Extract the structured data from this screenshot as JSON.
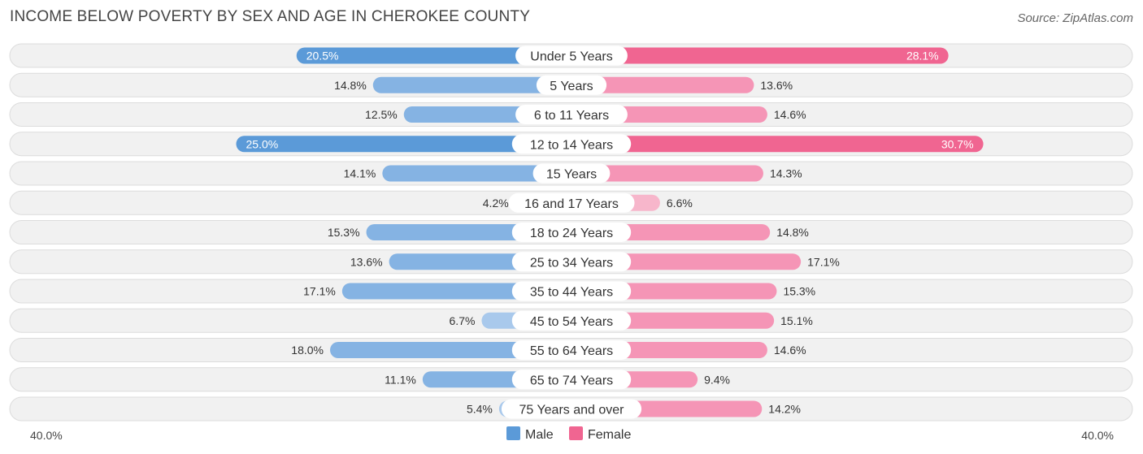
{
  "header": {
    "title": "INCOME BELOW POVERTY BY SEX AND AGE IN CHEROKEE COUNTY",
    "source": "Source: ZipAtlas.com"
  },
  "chart_data": {
    "type": "bar",
    "orientation": "horizontal-diverging",
    "title": "INCOME BELOW POVERTY BY SEX AND AGE IN CHEROKEE COUNTY",
    "categories": [
      "Under 5 Years",
      "5 Years",
      "6 to 11 Years",
      "12 to 14 Years",
      "15 Years",
      "16 and 17 Years",
      "18 to 24 Years",
      "25 to 34 Years",
      "35 to 44 Years",
      "45 to 54 Years",
      "55 to 64 Years",
      "65 to 74 Years",
      "75 Years and over"
    ],
    "series": [
      {
        "name": "Male",
        "values": [
          20.5,
          14.8,
          12.5,
          25.0,
          14.1,
          4.2,
          15.3,
          13.6,
          17.1,
          6.7,
          18.0,
          11.1,
          5.4
        ],
        "labels": [
          "20.5%",
          "14.8%",
          "12.5%",
          "25.0%",
          "14.1%",
          "4.2%",
          "15.3%",
          "13.6%",
          "17.1%",
          "6.7%",
          "18.0%",
          "11.1%",
          "5.4%"
        ]
      },
      {
        "name": "Female",
        "values": [
          28.1,
          13.6,
          14.6,
          30.7,
          14.3,
          6.6,
          14.8,
          17.1,
          15.3,
          15.1,
          14.6,
          9.4,
          14.2
        ],
        "labels": [
          "28.1%",
          "13.6%",
          "14.6%",
          "30.7%",
          "14.3%",
          "6.6%",
          "14.8%",
          "17.1%",
          "15.3%",
          "15.1%",
          "14.6%",
          "9.4%",
          "14.2%"
        ]
      }
    ],
    "xlim": [
      0,
      40
    ],
    "axis_labels": {
      "left": "40.0%",
      "right": "40.0%"
    },
    "legend": {
      "position": "bottom-center",
      "items": [
        "Male",
        "Female"
      ]
    },
    "colors": {
      "male_strong": "#5b9ad8",
      "male_light": "#a9c9ec",
      "female_strong": "#f06591",
      "female_light": "#f7b6cb"
    }
  }
}
